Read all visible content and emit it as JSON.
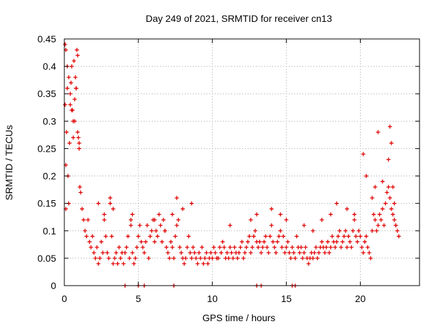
{
  "chart_data": {
    "type": "scatter",
    "title": "Day 249 of 2021, SRMTID for receiver cn13",
    "xlabel": "GPS time / hours",
    "ylabel": "SRMTID / TECUs",
    "xlim": [
      0,
      24
    ],
    "ylim": [
      0,
      0.45
    ],
    "grid": true,
    "marker": "+",
    "x_ticks": [
      0,
      5,
      10,
      15,
      20
    ],
    "x_tick_labels": [
      "0",
      "5",
      "10",
      "15",
      "20"
    ],
    "y_ticks": [
      0,
      0.05,
      0.1,
      0.15,
      0.2,
      0.25,
      0.3,
      0.35,
      0.4,
      0.45
    ],
    "y_tick_labels": [
      "0",
      "0.05",
      "0.1",
      "0.15",
      "0.2",
      "0.25",
      "0.3",
      "0.35",
      "0.4",
      "0.45"
    ],
    "series": [
      {
        "name": "SRMTID",
        "color": "#e00000",
        "x": [
          0.05,
          0.05,
          0.1,
          0.1,
          0.15,
          0.2,
          0.25,
          0.3,
          0.35,
          0.4,
          0.45,
          0.5,
          0.55,
          0.6,
          0.65,
          0.7,
          0.75,
          0.8,
          0.85,
          0.9,
          0.95,
          1.0,
          1.05,
          1.1,
          1.2,
          1.3,
          1.4,
          1.5,
          1.6,
          1.7,
          1.8,
          1.9,
          2.0,
          2.1,
          2.2,
          2.3,
          2.4,
          2.5,
          2.6,
          2.7,
          2.8,
          2.9,
          3.0,
          3.1,
          3.2,
          3.3,
          3.4,
          3.5,
          3.6,
          3.7,
          3.8,
          3.9,
          4.0,
          4.1,
          4.2,
          4.3,
          4.4,
          4.5,
          4.6,
          4.7,
          4.8,
          4.9,
          5.0,
          5.1,
          5.2,
          5.3,
          5.4,
          5.5,
          5.6,
          5.7,
          5.8,
          5.9,
          6.0,
          6.1,
          6.2,
          6.3,
          6.4,
          6.5,
          6.6,
          6.7,
          6.8,
          6.9,
          7.0,
          7.1,
          7.2,
          7.3,
          7.4,
          7.5,
          7.6,
          7.7,
          7.8,
          7.9,
          8.0,
          8.1,
          8.2,
          8.3,
          8.4,
          8.5,
          8.6,
          8.7,
          8.8,
          8.9,
          9.0,
          9.1,
          9.2,
          9.3,
          9.4,
          9.5,
          9.6,
          9.7,
          9.8,
          9.9,
          10.0,
          10.1,
          10.2,
          10.3,
          10.4,
          10.5,
          10.6,
          10.7,
          10.8,
          10.9,
          11.0,
          11.1,
          11.2,
          11.3,
          11.4,
          11.5,
          11.6,
          11.7,
          11.8,
          11.9,
          12.0,
          12.1,
          12.2,
          12.3,
          12.4,
          12.5,
          12.6,
          12.7,
          12.8,
          12.9,
          13.0,
          13.1,
          13.2,
          13.3,
          13.4,
          13.5,
          13.6,
          13.7,
          13.8,
          13.9,
          14.0,
          14.1,
          14.2,
          14.3,
          14.4,
          14.5,
          14.6,
          14.7,
          14.8,
          14.9,
          15.0,
          15.1,
          15.2,
          15.3,
          15.4,
          15.5,
          15.6,
          15.7,
          15.8,
          15.9,
          16.0,
          16.1,
          16.2,
          16.3,
          16.4,
          16.5,
          16.6,
          16.7,
          16.8,
          16.9,
          17.0,
          17.1,
          17.2,
          17.3,
          17.4,
          17.5,
          17.6,
          17.7,
          17.8,
          17.9,
          18.0,
          18.1,
          18.2,
          18.3,
          18.4,
          18.5,
          18.6,
          18.7,
          18.8,
          18.9,
          19.0,
          19.1,
          19.2,
          19.3,
          19.4,
          19.5,
          19.6,
          19.7,
          19.8,
          19.9,
          20.0,
          20.1,
          20.2,
          20.3,
          20.4,
          20.5,
          20.6,
          20.7,
          20.8,
          20.9,
          21.0,
          21.1,
          21.2,
          21.3,
          21.4,
          21.5,
          21.6,
          21.7,
          21.8,
          21.9,
          22.0,
          22.1,
          22.2,
          22.3,
          22.4,
          22.5,
          22.6,
          0.1,
          0.2,
          0.3,
          0.4,
          0.5,
          0.6,
          0.7,
          0.8,
          0.9,
          1.0,
          2.3,
          2.7,
          3.1,
          3.3,
          4.6,
          4.5,
          6.1,
          6.8,
          7.3,
          7.6,
          8.0,
          8.6,
          11.2,
          12.6,
          13.0,
          14.0,
          14.6,
          15.0,
          16.2,
          16.8,
          17.4,
          18.0,
          18.4,
          19.1,
          19.6,
          20.2,
          20.4,
          20.8,
          21.0,
          21.2,
          21.5,
          21.9,
          22.0,
          22.1,
          22.2,
          22.3,
          22.4,
          4.1,
          5.0,
          5.4,
          7.4,
          13.0,
          13.3,
          15.4,
          15.6
        ],
        "y": [
          0.44,
          0.33,
          0.22,
          0.14,
          0.28,
          0.36,
          0.2,
          0.15,
          0.26,
          0.33,
          0.37,
          0.4,
          0.32,
          0.27,
          0.41,
          0.3,
          0.38,
          0.36,
          0.43,
          0.28,
          0.27,
          0.25,
          0.18,
          0.17,
          0.14,
          0.12,
          0.1,
          0.09,
          0.12,
          0.08,
          0.07,
          0.09,
          0.06,
          0.05,
          0.07,
          0.04,
          0.05,
          0.08,
          0.06,
          0.12,
          0.09,
          0.06,
          0.05,
          0.15,
          0.09,
          0.04,
          0.05,
          0.06,
          0.04,
          0.07,
          0.05,
          0.06,
          0.04,
          0.06,
          0.07,
          0.09,
          0.05,
          0.12,
          0.06,
          0.04,
          0.05,
          0.07,
          0.09,
          0.11,
          0.08,
          0.07,
          0.06,
          0.08,
          0.11,
          0.05,
          0.09,
          0.1,
          0.12,
          0.08,
          0.1,
          0.09,
          0.13,
          0.11,
          0.08,
          0.12,
          0.1,
          0.07,
          0.06,
          0.05,
          0.08,
          0.07,
          0.05,
          0.09,
          0.11,
          0.12,
          0.07,
          0.06,
          0.05,
          0.04,
          0.05,
          0.07,
          0.09,
          0.06,
          0.05,
          0.07,
          0.06,
          0.05,
          0.04,
          0.06,
          0.05,
          0.07,
          0.04,
          0.05,
          0.06,
          0.04,
          0.05,
          0.06,
          0.05,
          0.07,
          0.06,
          0.05,
          0.05,
          0.07,
          0.06,
          0.08,
          0.07,
          0.05,
          0.06,
          0.05,
          0.07,
          0.06,
          0.05,
          0.07,
          0.06,
          0.05,
          0.06,
          0.07,
          0.08,
          0.05,
          0.06,
          0.07,
          0.08,
          0.09,
          0.06,
          0.07,
          0.09,
          0.1,
          0.08,
          0.07,
          0.08,
          0.06,
          0.07,
          0.08,
          0.09,
          0.07,
          0.06,
          0.09,
          0.11,
          0.08,
          0.07,
          0.06,
          0.08,
          0.09,
          0.1,
          0.07,
          0.09,
          0.06,
          0.07,
          0.08,
          0.06,
          0.05,
          0.07,
          0.06,
          0.05,
          0.09,
          0.07,
          0.06,
          0.07,
          0.05,
          0.06,
          0.07,
          0.05,
          0.04,
          0.05,
          0.06,
          0.05,
          0.06,
          0.07,
          0.05,
          0.06,
          0.07,
          0.08,
          0.07,
          0.06,
          0.07,
          0.08,
          0.06,
          0.07,
          0.09,
          0.08,
          0.07,
          0.08,
          0.09,
          0.1,
          0.07,
          0.08,
          0.09,
          0.1,
          0.07,
          0.09,
          0.08,
          0.07,
          0.1,
          0.12,
          0.09,
          0.08,
          0.1,
          0.09,
          0.07,
          0.06,
          0.08,
          0.09,
          0.07,
          0.06,
          0.05,
          0.1,
          0.13,
          0.12,
          0.1,
          0.11,
          0.13,
          0.12,
          0.14,
          0.11,
          0.15,
          0.17,
          0.18,
          0.16,
          0.14,
          0.13,
          0.12,
          0.11,
          0.1,
          0.09,
          0.43,
          0.4,
          0.38,
          0.35,
          0.32,
          0.3,
          0.34,
          0.36,
          0.42,
          0.26,
          0.15,
          0.13,
          0.16,
          0.14,
          0.13,
          0.11,
          0.12,
          0.1,
          0.13,
          0.16,
          0.14,
          0.15,
          0.11,
          0.12,
          0.13,
          0.14,
          0.13,
          0.12,
          0.11,
          0.1,
          0.12,
          0.13,
          0.15,
          0.14,
          0.13,
          0.24,
          0.2,
          0.16,
          0.18,
          0.28,
          0.19,
          0.23,
          0.29,
          0.26,
          0.18,
          0.15,
          0.11,
          0.0,
          0.0,
          0.0,
          0.0,
          0.0,
          0.0,
          0.0,
          0.0
        ]
      }
    ]
  }
}
